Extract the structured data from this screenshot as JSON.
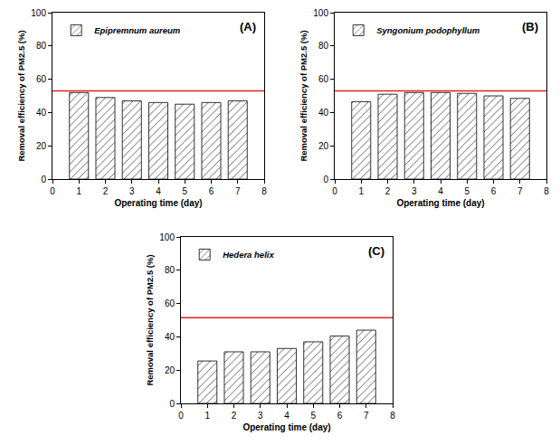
{
  "chart_data": [
    {
      "type": "bar",
      "annotations": [
        "(A)"
      ],
      "x": [
        1,
        2,
        3,
        4,
        5,
        6,
        7
      ],
      "series": [
        {
          "name": "Epipremnum aureum",
          "color": "#c8c8c8",
          "values": [
            52,
            49,
            47,
            46,
            45,
            46,
            47
          ]
        }
      ],
      "xlabel": "Operating time (day)",
      "ylabel": "Removal efficiency of PM2.5 (%)",
      "xlim": [
        0,
        8
      ],
      "xticks": [
        0,
        1,
        2,
        3,
        4,
        5,
        6,
        7,
        8
      ],
      "ylim": [
        0,
        100
      ],
      "yticks": [
        0,
        20,
        40,
        60,
        80,
        100
      ],
      "legend": "upper left",
      "reference_line": {
        "value": 53,
        "color": "#e02020"
      }
    },
    {
      "type": "bar",
      "annotations": [
        "(B)"
      ],
      "x": [
        1,
        2,
        3,
        4,
        5,
        6,
        7
      ],
      "series": [
        {
          "name": "Syngonium podophyllum",
          "color": "#c8c8c8",
          "values": [
            46.5,
            51,
            52,
            52,
            51.5,
            50,
            48.5
          ]
        }
      ],
      "xlabel": "Operating time (day)",
      "ylabel": "Removal efficiency of PM2.5 (%)",
      "xlim": [
        0,
        8
      ],
      "xticks": [
        0,
        1,
        2,
        3,
        4,
        5,
        6,
        7,
        8
      ],
      "ylim": [
        0,
        100
      ],
      "yticks": [
        0,
        20,
        40,
        60,
        80,
        100
      ],
      "legend": "upper left",
      "reference_line": {
        "value": 53,
        "color": "#e02020"
      }
    },
    {
      "type": "bar",
      "annotations": [
        "(C)"
      ],
      "x": [
        1,
        2,
        3,
        4,
        5,
        6,
        7
      ],
      "series": [
        {
          "name": "Hedera helix",
          "color": "#c8c8c8",
          "values": [
            25.5,
            31,
            31,
            33,
            37,
            40.5,
            44
          ]
        }
      ],
      "xlabel": "Operating time (day)",
      "ylabel": "Removal efficiency of PM2.5 (%)",
      "xlim": [
        0,
        8
      ],
      "xticks": [
        0,
        1,
        2,
        3,
        4,
        5,
        6,
        7,
        8
      ],
      "ylim": [
        0,
        100
      ],
      "yticks": [
        0,
        20,
        40,
        60,
        80,
        100
      ],
      "legend": "upper left",
      "reference_line": {
        "value": 51.5,
        "color": "#e02020"
      }
    }
  ]
}
